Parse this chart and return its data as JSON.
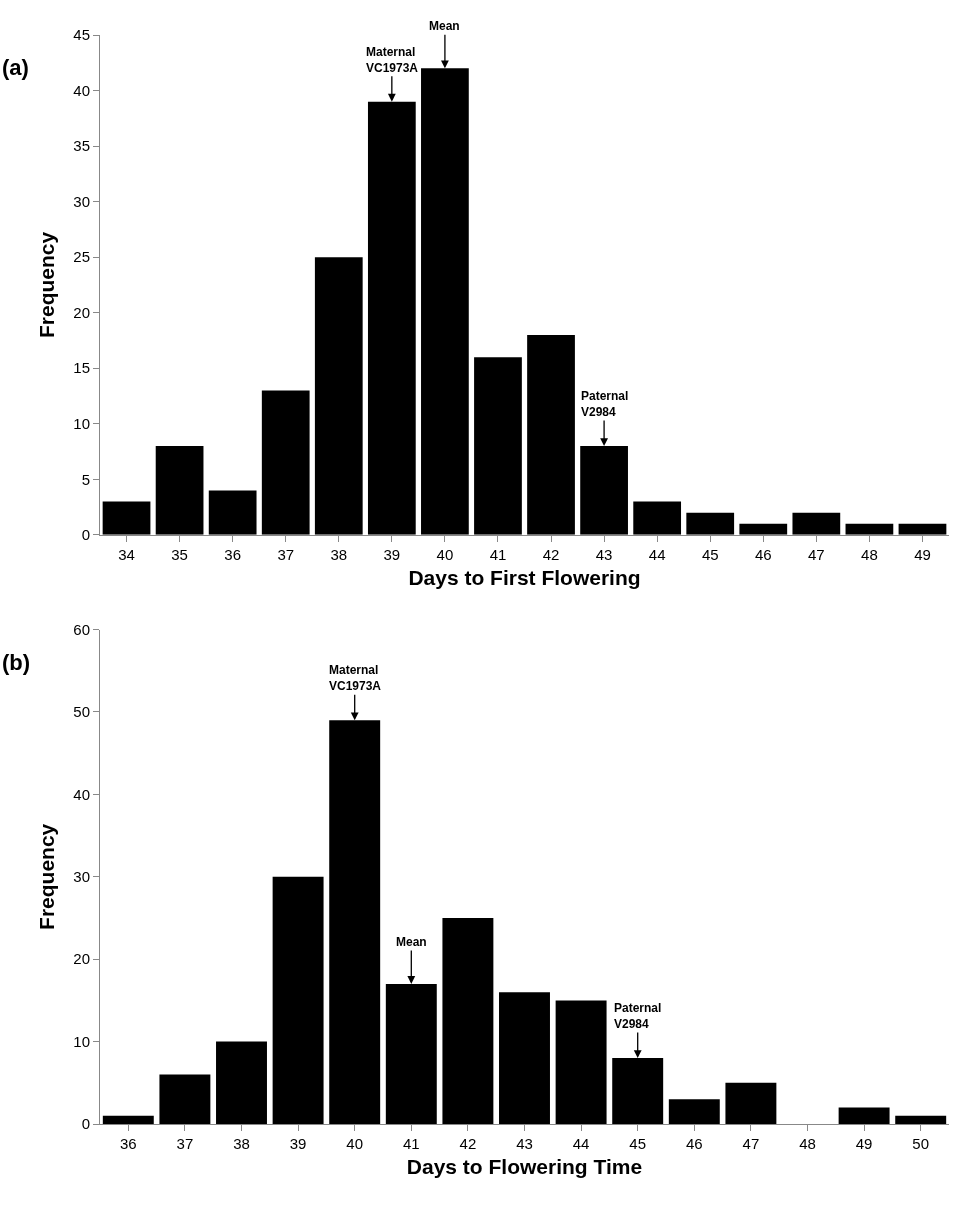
{
  "chart_data": [
    {
      "type": "bar",
      "title": "(a)",
      "xlabel": "Days to First Flowering",
      "ylabel": "Frequency",
      "categories": [
        "34",
        "35",
        "36",
        "37",
        "38",
        "39",
        "40",
        "41",
        "42",
        "43",
        "44",
        "45",
        "46",
        "47",
        "48",
        "49"
      ],
      "values": [
        3,
        8,
        4,
        13,
        25,
        39,
        42,
        16,
        18,
        8,
        3,
        2,
        1,
        2,
        1,
        1
      ],
      "color": "#000000",
      "ylim": [
        0,
        45
      ],
      "yticks": [
        0,
        5,
        10,
        15,
        20,
        25,
        30,
        35,
        40,
        45
      ],
      "legend": false,
      "annotations": [
        {
          "text": "Maternal\nVC1973A",
          "x": "39",
          "y": 39
        },
        {
          "text": "Mean",
          "x": "40",
          "y": 42
        },
        {
          "text": "Paternal\nV2984",
          "x": "43",
          "y": 8
        }
      ]
    },
    {
      "type": "bar",
      "title": "(b)",
      "xlabel": "Days to Flowering Time",
      "ylabel": "Frequency",
      "categories": [
        "36",
        "37",
        "38",
        "39",
        "40",
        "41",
        "42",
        "43",
        "44",
        "45",
        "46",
        "47",
        "48",
        "49",
        "50"
      ],
      "values": [
        1,
        6,
        10,
        30,
        49,
        17,
        25,
        16,
        15,
        8,
        3,
        5,
        0,
        2,
        1
      ],
      "color": "#000000",
      "ylim": [
        0,
        60
      ],
      "yticks": [
        0,
        10,
        20,
        30,
        40,
        50,
        60
      ],
      "legend": false,
      "annotations": [
        {
          "text": "Maternal\nVC1973A",
          "x": "40",
          "y": 49
        },
        {
          "text": "Mean",
          "x": "41",
          "y": 17
        },
        {
          "text": "Paternal\nV2984",
          "x": "45",
          "y": 8
        }
      ]
    }
  ]
}
